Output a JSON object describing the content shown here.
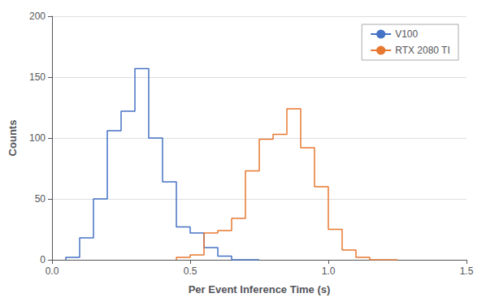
{
  "chart_data": {
    "type": "histogram",
    "xlabel": "Per Event Inference Time (s)",
    "ylabel": "Counts",
    "xlim": [
      0.0,
      1.5
    ],
    "ylim": [
      0,
      200
    ],
    "xticks": [
      {
        "value": 0.0,
        "label": "0.0"
      },
      0.5,
      {
        "value": 1.0,
        "label": "1.0"
      },
      {
        "value": 1.5,
        "label": "1.5"
      }
    ],
    "yticks": [
      0,
      50,
      100,
      150,
      200
    ],
    "series": [
      {
        "name": "V100",
        "color": "#4472C4",
        "bins": [
          0.05,
          0.1,
          0.15,
          0.2,
          0.25,
          0.3,
          0.35,
          0.4,
          0.45,
          0.5,
          0.55,
          0.6,
          0.65,
          0.7,
          0.75
        ],
        "values": [
          2,
          18,
          50,
          106,
          122,
          157,
          100,
          64,
          27,
          22,
          10,
          3,
          0,
          0
        ]
      },
      {
        "name": "RTX 2080 TI",
        "color": "#E87831",
        "bins": [
          0.45,
          0.5,
          0.55,
          0.6,
          0.65,
          0.7,
          0.75,
          0.8,
          0.85,
          0.9,
          0.95,
          1.0,
          1.05,
          1.1,
          1.15,
          1.2,
          1.25
        ],
        "values": [
          2,
          4,
          22,
          24,
          34,
          73,
          99,
          103,
          124,
          92,
          60,
          25,
          8,
          2,
          0,
          0
        ]
      }
    ],
    "grid": true,
    "legend": "upper right"
  }
}
